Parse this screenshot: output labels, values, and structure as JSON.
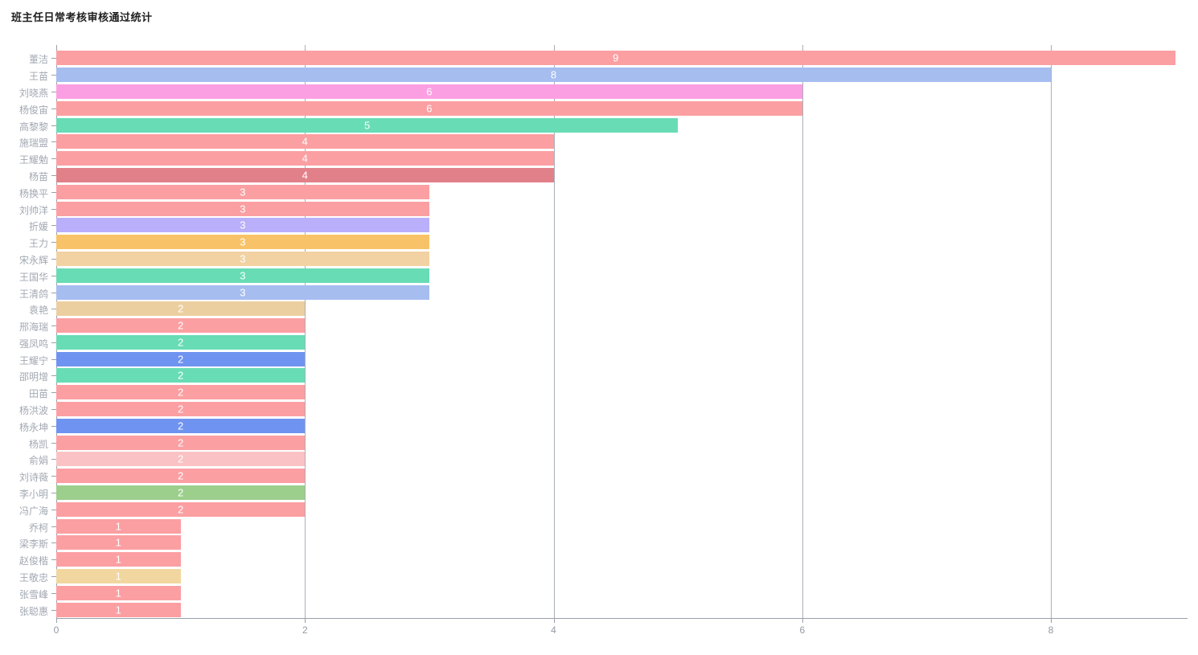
{
  "title": "班主任日常考核审核通过统计",
  "axis": {
    "line_color": "#99a0a9",
    "grid_color": "#a9afb8",
    "tick_label_color": "#939aa4",
    "category_label_color": "#a2a8b2"
  },
  "chart_data": {
    "type": "bar",
    "orientation": "horizontal",
    "title": "班主任日常考核审核通过统计",
    "xlabel": "",
    "ylabel": "",
    "xlim": [
      0,
      9.1
    ],
    "x_ticks": [
      0,
      2,
      4,
      6,
      8
    ],
    "grid": true,
    "legend": "none",
    "value_label_color": "#ffffff",
    "categories": [
      "董洁",
      "王苗",
      "刘晓燕",
      "杨俊宙",
      "高黎黎",
      "施瑞盟",
      "王耀勉",
      "杨苗",
      "杨换平",
      "刘帅洋",
      "折媛",
      "王力",
      "宋永辉",
      "王国华",
      "王清鸽",
      "袁艳",
      "邢海瑞",
      "强凤鸣",
      "王耀宁",
      "邵明增",
      "田苗",
      "杨洪波",
      "杨永坤",
      "杨凯",
      "俞娟",
      "刘诗薇",
      "李小明",
      "冯广海",
      "乔柯",
      "梁李斯",
      "赵俊楷",
      "王敬忠",
      "张雪峰",
      "张聪惠"
    ],
    "values": [
      9,
      8,
      6,
      6,
      5,
      4,
      4,
      4,
      3,
      3,
      3,
      3,
      3,
      3,
      3,
      2,
      2,
      2,
      2,
      2,
      2,
      2,
      2,
      2,
      2,
      2,
      2,
      2,
      1,
      1,
      1,
      1,
      1,
      1
    ],
    "bar_colors": [
      "#fb9fa2",
      "#a6bdf0",
      "#fc9fe2",
      "#fb9fa2",
      "#68dcb5",
      "#fb9fa2",
      "#fb9fa2",
      "#e2808a",
      "#fb9fa2",
      "#fb9fa2",
      "#b9affa",
      "#f8c368",
      "#f2d2a2",
      "#68dcb5",
      "#a6bdf0",
      "#eccfa0",
      "#fb9fa2",
      "#68dcb5",
      "#6f93f0",
      "#68dcb5",
      "#fb9fa2",
      "#fb9fa2",
      "#6f93f0",
      "#fb9fa2",
      "#fac2c4",
      "#fb9fa2",
      "#9ccf8c",
      "#fb9fa2",
      "#fb9fa2",
      "#fb9fa2",
      "#fb9fa2",
      "#f2d6a0",
      "#fb9fa2",
      "#fb9fa2"
    ]
  }
}
